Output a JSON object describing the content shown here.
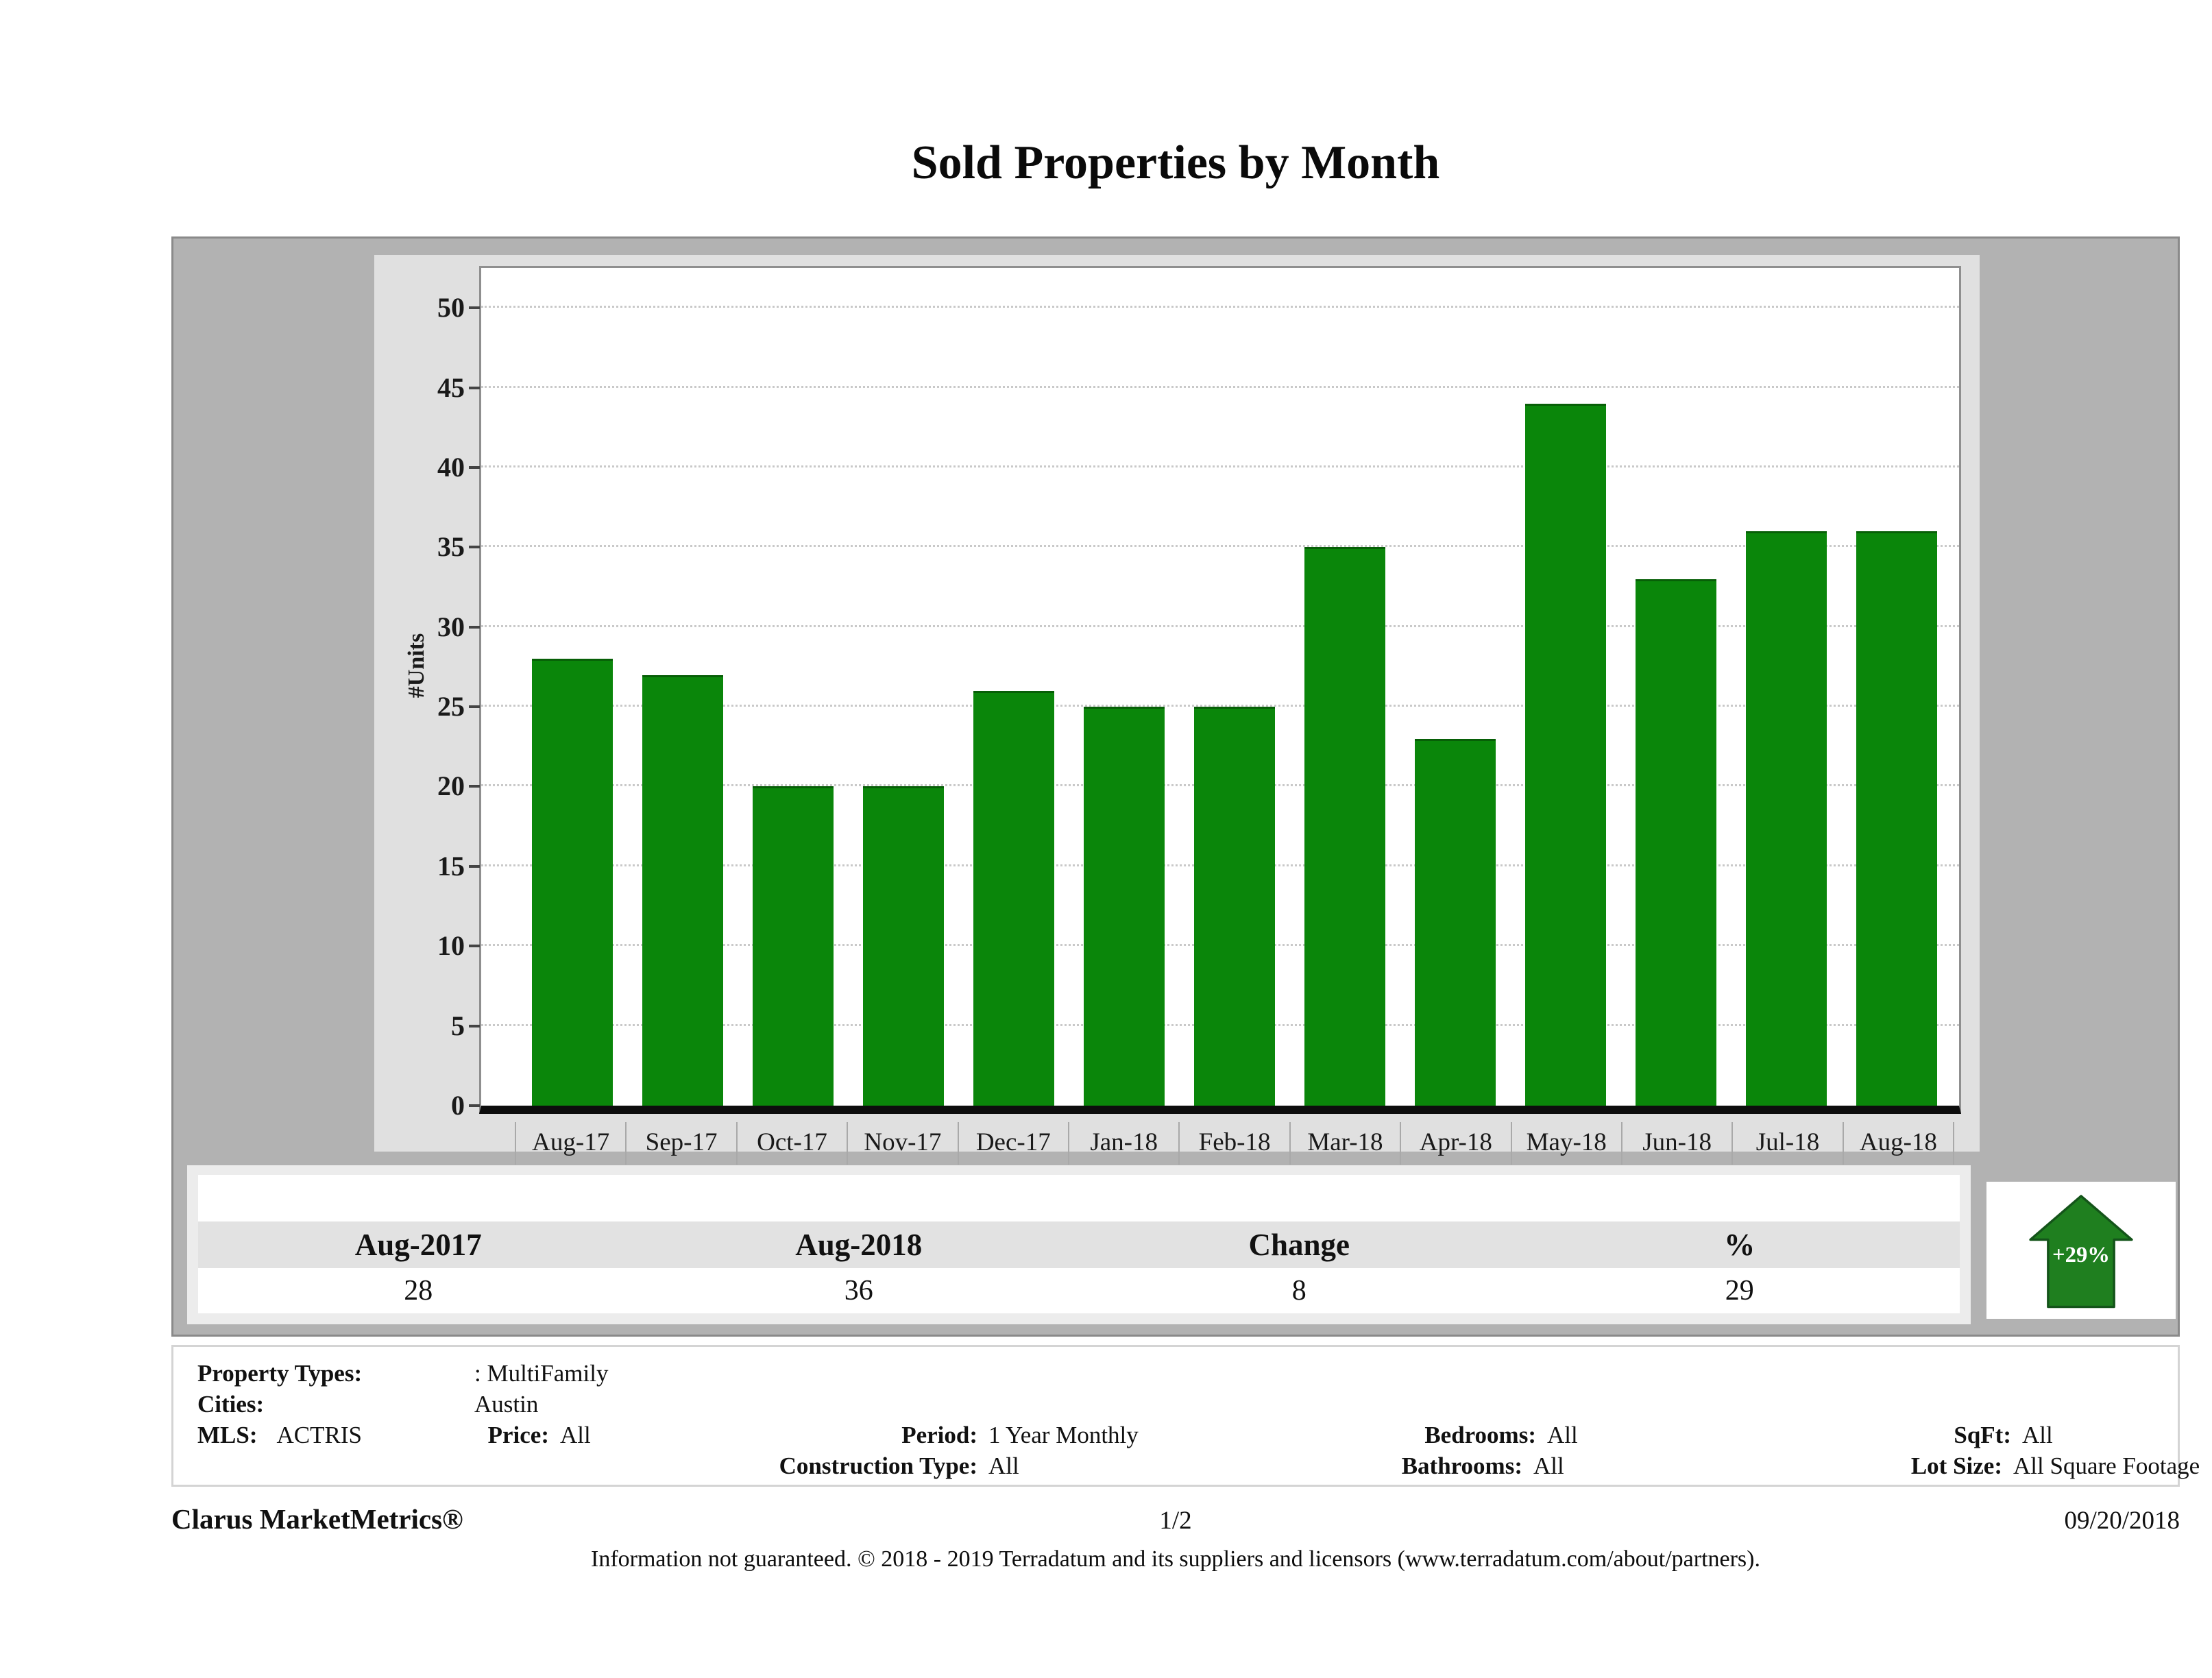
{
  "title": "Sold Properties by Month",
  "chart_data": {
    "type": "bar",
    "title": "Sold Properties by Month",
    "xlabel": "",
    "ylabel": "#Units",
    "categories": [
      "Aug-17",
      "Sep-17",
      "Oct-17",
      "Nov-17",
      "Dec-17",
      "Jan-18",
      "Feb-18",
      "Mar-18",
      "Apr-18",
      "May-18",
      "Jun-18",
      "Jul-18",
      "Aug-18"
    ],
    "values": [
      28,
      27,
      20,
      20,
      26,
      25,
      25,
      35,
      23,
      44,
      33,
      36,
      36
    ],
    "ylim": [
      0,
      52.5
    ],
    "yticks": [
      0,
      5,
      10,
      15,
      20,
      25,
      30,
      35,
      40,
      45,
      50
    ],
    "grid": true,
    "legend_position": "none",
    "bar_color": "#0a860a"
  },
  "summary_table": {
    "columns": [
      "Aug-2017",
      "Aug-2018",
      "Change",
      "%"
    ],
    "values": [
      "28",
      "36",
      "8",
      "29"
    ]
  },
  "change_badge": {
    "label": "+29%",
    "direction": "up",
    "arrow_color": "#1f7f1f"
  },
  "filters": {
    "property_types_label": "Property Types:",
    "property_types_value": ": MultiFamily",
    "cities_label": "Cities:",
    "cities_value": "Austin",
    "mls_label": "MLS:",
    "mls_value": "ACTRIS",
    "price_label": "Price:",
    "price_value": "All",
    "period_label": "Period:",
    "period_value": "1 Year Monthly",
    "construction_label": "Construction Type:",
    "construction_value": "All",
    "bedrooms_label": "Bedrooms:",
    "bedrooms_value": "All",
    "bathrooms_label": "Bathrooms:",
    "bathrooms_value": "All",
    "sqft_label": "SqFt:",
    "sqft_value": "All",
    "lot_label": "Lot Size:",
    "lot_value": "All Square Footage"
  },
  "footer": {
    "brand": "Clarus MarketMetrics®",
    "page": "1/2",
    "date": "09/20/2018",
    "disclaimer": "Information not guaranteed. © 2018 - 2019 Terradatum and its suppliers and licensors (www.terradatum.com/about/partners)."
  }
}
